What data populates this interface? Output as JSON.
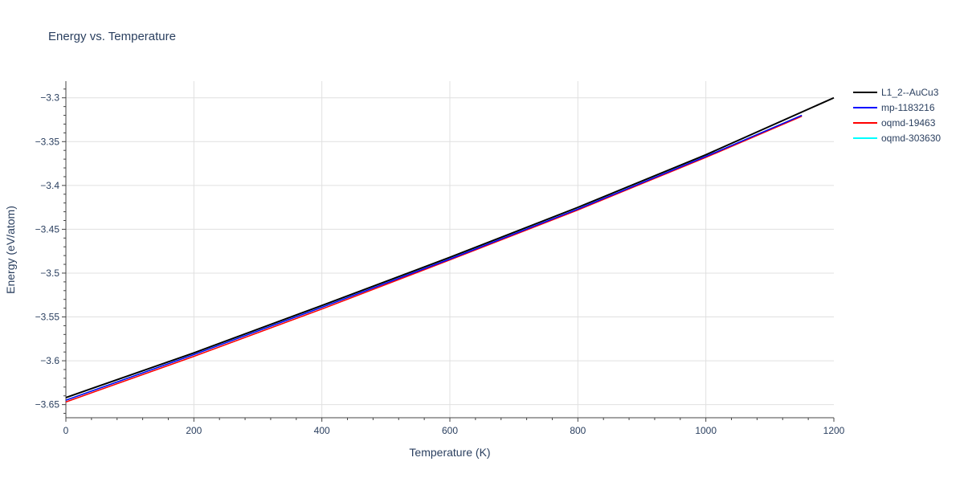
{
  "chart_data": {
    "type": "line",
    "title": "Energy vs. Temperature",
    "xlabel": "Temperature (K)",
    "ylabel": "Energy (eV/atom)",
    "xlim": [
      0,
      1200
    ],
    "ylim": [
      -3.665,
      -3.281
    ],
    "xticks": [
      0,
      200,
      400,
      600,
      800,
      1000,
      1200
    ],
    "xtick_labels": [
      "0",
      "200",
      "400",
      "600",
      "800",
      "1000",
      "1200"
    ],
    "yticks": [
      -3.3,
      -3.35,
      -3.4,
      -3.45,
      -3.5,
      -3.55,
      -3.6,
      -3.65
    ],
    "ytick_labels": [
      "−3.3",
      "−3.35",
      "−3.4",
      "−3.45",
      "−3.5",
      "−3.55",
      "−3.6",
      "−3.65"
    ],
    "grid": true,
    "legend_position": "top-right",
    "series": [
      {
        "name": "L1_2--AuCu3",
        "color": "#000000",
        "x": [
          0,
          200,
          400,
          600,
          800,
          1000,
          1200
        ],
        "y": [
          -3.642,
          -3.591,
          -3.537,
          -3.482,
          -3.425,
          -3.365,
          -3.3
        ]
      },
      {
        "name": "mp-1183216",
        "color": "#0000ff",
        "x": [
          0,
          200,
          400,
          600,
          800,
          1000,
          1150
        ],
        "y": [
          -3.645,
          -3.593,
          -3.539,
          -3.484,
          -3.427,
          -3.367,
          -3.32
        ]
      },
      {
        "name": "oqmd-19463",
        "color": "#ff0000",
        "x": [
          0,
          200,
          400,
          600,
          800,
          1000,
          1150
        ],
        "y": [
          -3.647,
          -3.595,
          -3.541,
          -3.485,
          -3.428,
          -3.368,
          -3.321
        ]
      },
      {
        "name": "oqmd-303630",
        "color": "#00ffff",
        "x": [
          0,
          200,
          400,
          600,
          800,
          1000,
          1150
        ],
        "y": [
          -3.645,
          -3.593,
          -3.539,
          -3.484,
          -3.427,
          -3.367,
          -3.32
        ]
      }
    ]
  }
}
